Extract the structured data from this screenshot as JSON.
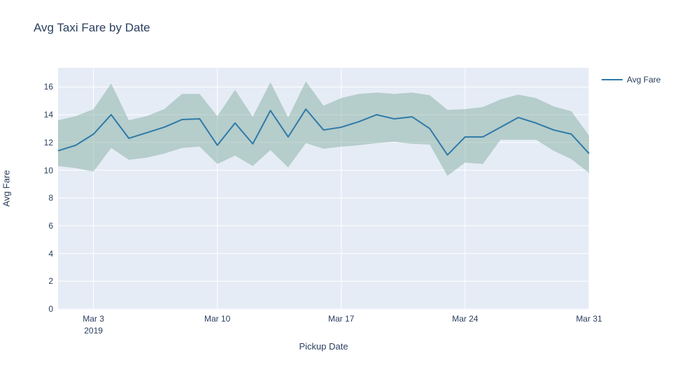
{
  "header": {
    "title": "Avg Taxi Fare by Date"
  },
  "legend": {
    "label": "Avg Fare"
  },
  "colors": {
    "paper_bg": "#ffffff",
    "plot_bg": "#e5ecf6",
    "grid": "#ffffff",
    "line": "#2f7aa8",
    "band_fill": "#6ea08c",
    "band_opacity": 0.4,
    "text": "#2a3f5f"
  },
  "chart_data": {
    "type": "line",
    "title": "Avg Taxi Fare by Date",
    "xlabel": "Pickup Date",
    "ylabel": "Avg Fare",
    "x_month": "March 2019",
    "days": [
      1,
      2,
      3,
      4,
      5,
      6,
      7,
      8,
      9,
      10,
      11,
      12,
      13,
      14,
      15,
      16,
      17,
      18,
      19,
      20,
      21,
      22,
      23,
      24,
      25,
      26,
      27,
      28,
      29,
      30,
      31
    ],
    "series": [
      {
        "name": "Avg Fare",
        "values": [
          11.4,
          11.8,
          12.6,
          14.0,
          12.3,
          12.7,
          13.1,
          13.65,
          13.7,
          11.8,
          13.4,
          11.9,
          14.3,
          12.4,
          14.4,
          12.9,
          13.1,
          13.5,
          14.0,
          13.7,
          13.85,
          13.0,
          11.1,
          12.4,
          12.4,
          13.1,
          13.8,
          13.4,
          12.9,
          12.6,
          11.2
        ]
      },
      {
        "name": "band upper",
        "values": [
          13.6,
          13.9,
          14.4,
          16.25,
          13.6,
          13.9,
          14.4,
          15.5,
          15.5,
          13.9,
          15.8,
          13.85,
          16.35,
          13.8,
          16.4,
          14.65,
          15.2,
          15.5,
          15.6,
          15.5,
          15.6,
          15.4,
          14.35,
          14.4,
          14.55,
          15.1,
          15.45,
          15.2,
          14.6,
          14.25,
          12.5
        ]
      },
      {
        "name": "band lower",
        "values": [
          10.3,
          10.15,
          9.9,
          11.6,
          10.75,
          10.9,
          11.2,
          11.6,
          11.7,
          10.45,
          11.05,
          10.3,
          11.45,
          10.2,
          11.95,
          11.55,
          11.7,
          11.8,
          11.95,
          12.05,
          11.9,
          11.85,
          9.6,
          10.55,
          10.45,
          12.2,
          12.2,
          12.2,
          11.4,
          10.8,
          9.8
        ]
      }
    ],
    "y_ticks": [
      0,
      2,
      4,
      6,
      8,
      10,
      12,
      14,
      16
    ],
    "x_ticks": [
      {
        "day": 3,
        "label": "Mar 3",
        "sublabel": "2019"
      },
      {
        "day": 10,
        "label": "Mar 10"
      },
      {
        "day": 17,
        "label": "Mar 17"
      },
      {
        "day": 24,
        "label": "Mar 24"
      },
      {
        "day": 31,
        "label": "Mar 31"
      }
    ],
    "ylim": [
      0,
      17.4
    ],
    "grid": true,
    "legend_position": "right-top"
  }
}
